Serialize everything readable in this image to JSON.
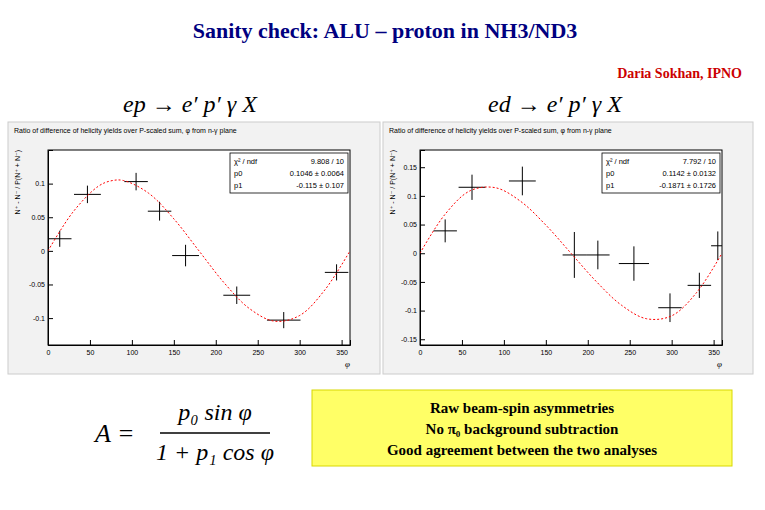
{
  "slide": {
    "title": "Sanity check: ALU – proton in NH3/ND3",
    "author": "Daria Sokhan, IPNO",
    "formula": {
      "lhs": "A =",
      "numerator": "p₀ sin φ",
      "denominator": "1 + p₁ cos φ"
    },
    "note": [
      "Raw beam-spin asymmetries",
      "No π₀ background subtraction",
      "Good agreement between the two analyses"
    ]
  },
  "chart_data": [
    {
      "type": "scatter",
      "title": "ep → e′ p′ γ  X",
      "subtitle": "Ratio of difference of helicity yields over P-scaled sum, φ from n-γ plane",
      "x_label": "φ",
      "y_label": "N⁺ - N⁻ / P(N⁺ + N⁻)",
      "xlim": [
        0,
        360
      ],
      "xticks": [
        0,
        50,
        100,
        150,
        200,
        250,
        300,
        350
      ],
      "ylim": [
        -0.14,
        0.15
      ],
      "yticks": [
        -0.1,
        -0.05,
        0,
        0.05,
        0.1
      ],
      "stats": [
        {
          "label": "χ² / ndf",
          "value": "9.808 / 10"
        },
        {
          "label": "p0",
          "value": "0.1046 ± 0.0064"
        },
        {
          "label": "p1",
          "value": "-0.115 ± 0.107"
        }
      ],
      "series": [
        {
          "type": "scatter",
          "marker": "cross",
          "color": "#000000",
          "x": [
            14,
            47,
            105,
            133,
            164,
            225,
            281,
            344
          ],
          "values": [
            0.018,
            0.084,
            0.103,
            0.059,
            -0.007,
            -0.066,
            -0.103,
            -0.032
          ],
          "xerr": [
            14,
            16,
            14,
            14,
            16,
            16,
            20,
            14
          ],
          "yerr": [
            0.012,
            0.013,
            0.013,
            0.014,
            0.016,
            0.013,
            0.012,
            0.012
          ]
        },
        {
          "type": "line",
          "line_style": "dotted",
          "color": "#ff0000",
          "x": [
            0,
            30,
            60,
            75,
            90,
            120,
            150,
            180,
            210,
            240,
            270,
            300,
            330,
            360
          ],
          "values": [
            0,
            0.0581,
            0.0961,
            0.1041,
            0.1046,
            0.0857,
            0.0476,
            0,
            -0.0476,
            -0.0857,
            -0.1046,
            -0.0961,
            -0.0581,
            0
          ]
        }
      ]
    },
    {
      "type": "scatter",
      "title": "ed → e′ p′ γ  X",
      "subtitle": "Ratio of difference of helicity yields over P-scaled sum, φ from n-γ plane",
      "x_label": "φ",
      "y_label": "N⁺ - N⁻ / P(N⁺ + N⁻)",
      "xlim": [
        0,
        360
      ],
      "xticks": [
        0,
        50,
        100,
        150,
        200,
        250,
        300,
        350
      ],
      "ylim": [
        -0.16,
        0.18
      ],
      "yticks": [
        -0.15,
        -0.1,
        -0.05,
        0,
        0.05,
        0.1,
        0.15
      ],
      "stats": [
        {
          "label": "χ² / ndf",
          "value": "7.792 / 10"
        },
        {
          "label": "p0",
          "value": "0.1142 ± 0.0132"
        },
        {
          "label": "p1",
          "value": "-0.1871 ± 0.1726"
        }
      ],
      "series": [
        {
          "type": "scatter",
          "marker": "cross",
          "color": "#000000",
          "x": [
            30,
            62,
            122,
            184,
            212,
            255,
            298,
            333,
            355
          ],
          "values": [
            0.039,
            0.115,
            0.126,
            -0.003,
            -0.003,
            -0.018,
            -0.095,
            -0.056,
            0.013
          ],
          "xerr": [
            14,
            16,
            16,
            14,
            14,
            18,
            14,
            14,
            8
          ],
          "yerr": [
            0.02,
            0.022,
            0.025,
            0.04,
            0.025,
            0.03,
            0.025,
            0.022,
            0.025
          ]
        },
        {
          "type": "line",
          "line_style": "dotted",
          "color": "#ff0000",
          "x": [
            0,
            30,
            60,
            90,
            120,
            150,
            180,
            210,
            240,
            270,
            300,
            330,
            360
          ],
          "values": [
            0,
            0.0681,
            0.1091,
            0.1142,
            0.0904,
            0.0491,
            0,
            -0.0491,
            -0.0904,
            -0.1142,
            -0.1091,
            -0.0681,
            0
          ]
        }
      ]
    }
  ]
}
